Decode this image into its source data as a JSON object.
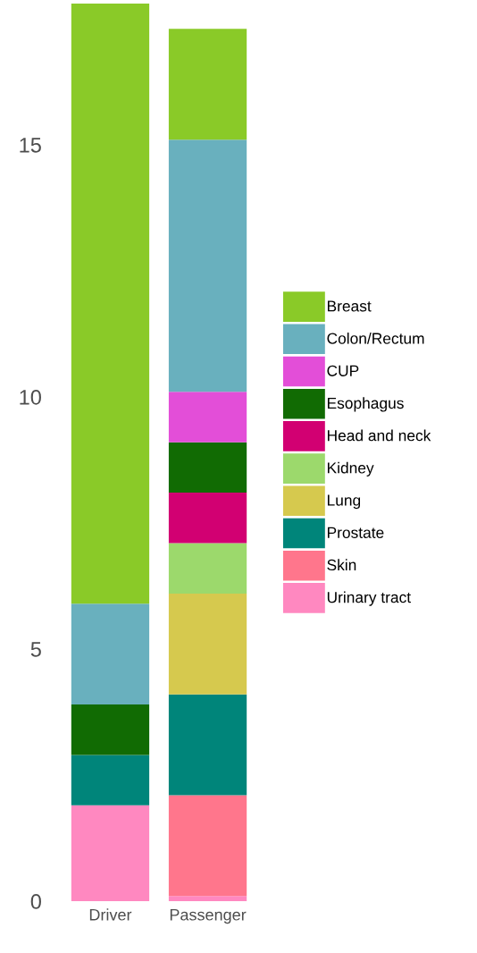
{
  "chart_data": {
    "type": "bar",
    "stacked": true,
    "categories": [
      "Driver",
      "Passenger"
    ],
    "series": [
      {
        "name": "Urinary tract",
        "color": "#ff88c0",
        "values": [
          1.9,
          0.1
        ]
      },
      {
        "name": "Skin",
        "color": "#ff768c",
        "values": [
          null,
          2.0
        ]
      },
      {
        "name": "Prostate",
        "color": "#00857a",
        "values": [
          1.0,
          2.0
        ]
      },
      {
        "name": "Lung",
        "color": "#d6c94e",
        "values": [
          null,
          2.0
        ]
      },
      {
        "name": "Kidney",
        "color": "#9cd96c",
        "values": [
          null,
          1.0
        ]
      },
      {
        "name": "Head and neck",
        "color": "#d20072",
        "values": [
          null,
          1.0
        ]
      },
      {
        "name": "Esophagus",
        "color": "#116b03",
        "values": [
          1.0,
          1.0
        ]
      },
      {
        "name": "CUP",
        "color": "#e34ed8",
        "values": [
          null,
          1.0
        ]
      },
      {
        "name": "Colon/Rectum",
        "color": "#69b0be",
        "values": [
          2.0,
          5.0
        ]
      },
      {
        "name": "Breast",
        "color": "#8aca28",
        "values": [
          11.9,
          2.2
        ]
      }
    ],
    "ylim": [
      0,
      17.8
    ],
    "yticks": [
      0,
      5,
      10,
      15
    ],
    "grid": false,
    "legend": "right"
  }
}
